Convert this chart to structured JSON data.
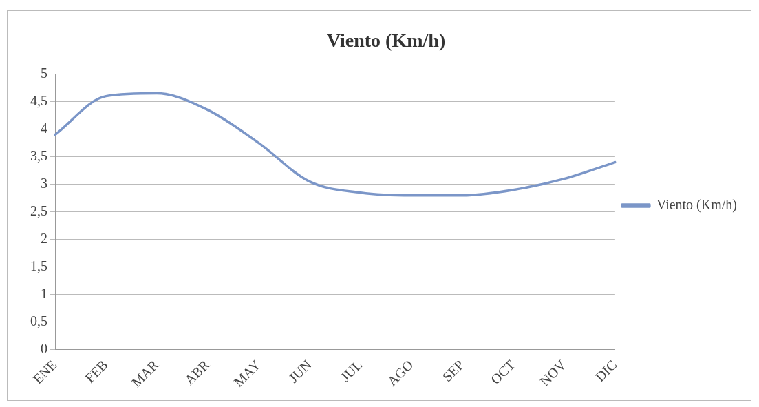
{
  "chart_data": {
    "type": "line",
    "title": "Viento (Km/h)",
    "categories": [
      "ENE",
      "FEB",
      "MAR",
      "ABR",
      "MAY",
      "JUN",
      "JUL",
      "AGO",
      "SEP",
      "OCT",
      "NOV",
      "DIC"
    ],
    "series": [
      {
        "name": "Viento (Km/h)",
        "color": "#7b96c8",
        "values": [
          3.9,
          4.6,
          4.65,
          4.35,
          3.75,
          3.05,
          2.85,
          2.8,
          2.8,
          2.9,
          3.1,
          3.4
        ]
      }
    ],
    "ylim": [
      0,
      5
    ],
    "yticks": [
      {
        "value": 0,
        "label": "0"
      },
      {
        "value": 0.5,
        "label": "0,5"
      },
      {
        "value": 1,
        "label": "1"
      },
      {
        "value": 1.5,
        "label": "1,5"
      },
      {
        "value": 2,
        "label": "2"
      },
      {
        "value": 2.5,
        "label": "2,5"
      },
      {
        "value": 3,
        "label": "3"
      },
      {
        "value": 3.5,
        "label": "3,5"
      },
      {
        "value": 4,
        "label": "4"
      },
      {
        "value": 4.5,
        "label": "4,5"
      },
      {
        "value": 5,
        "label": "5"
      }
    ],
    "grid": "y",
    "legend": "right",
    "marker": "none",
    "line_style": "solid"
  }
}
